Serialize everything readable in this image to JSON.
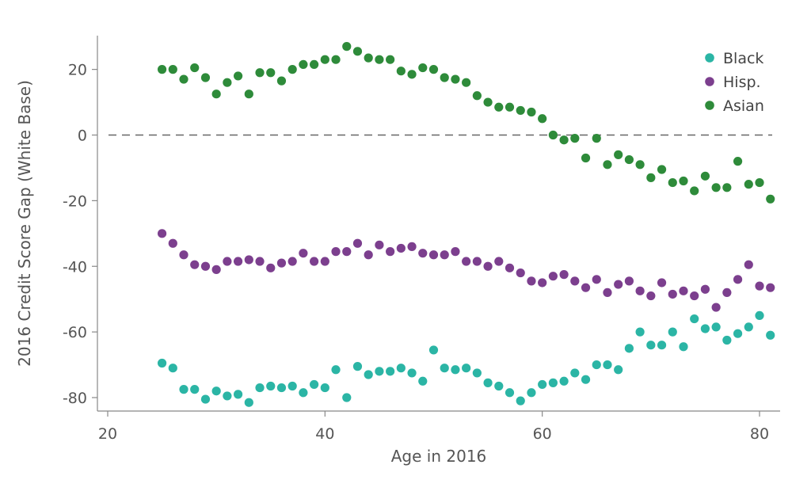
{
  "chart_data": {
    "type": "scatter",
    "xlabel": "Age in 2016",
    "ylabel": "2016 Credit Score Gap (White Base)",
    "xlim": [
      19,
      82
    ],
    "ylim": [
      -85,
      31
    ],
    "xticks": [
      20,
      40,
      60,
      80
    ],
    "yticks": [
      -80,
      -60,
      -40,
      -20,
      0,
      20
    ],
    "reference_line": {
      "y": 0,
      "style": "dashed"
    },
    "grid": false,
    "legend_position": "top-right",
    "series": [
      {
        "name": "Black",
        "color": "#2bb5a5",
        "x": [
          25,
          26,
          27,
          28,
          29,
          30,
          31,
          32,
          33,
          34,
          35,
          36,
          37,
          38,
          39,
          40,
          41,
          42,
          43,
          44,
          45,
          46,
          47,
          48,
          49,
          50,
          51,
          52,
          53,
          54,
          55,
          56,
          57,
          58,
          59,
          60,
          61,
          62,
          63,
          64,
          65,
          66,
          67,
          68,
          69,
          70,
          71,
          72,
          73,
          74,
          75,
          76,
          77,
          78,
          79,
          80,
          81
        ],
        "y": [
          -69.5,
          -71,
          -77.5,
          -77.5,
          -80.5,
          -78,
          -79.5,
          -79,
          -81.5,
          -77,
          -76.5,
          -77,
          -76.5,
          -78.5,
          -76,
          -77,
          -71.5,
          -80,
          -70.5,
          -73,
          -72,
          -72,
          -71,
          -72.5,
          -75,
          -65.5,
          -71,
          -71.5,
          -71,
          -72.5,
          -75.5,
          -76.5,
          -78.5,
          -81,
          -78.5,
          -76,
          -75.5,
          -75,
          -72.5,
          -74.5,
          -70,
          -70,
          -71.5,
          -65,
          -60,
          -64,
          -64,
          -60,
          -64.5,
          -56,
          -59,
          -58.5,
          -62.5,
          -60.5,
          -58.5,
          -55,
          -61
        ]
      },
      {
        "name": "Hisp.",
        "color": "#7c3f8e",
        "x": [
          25,
          26,
          27,
          28,
          29,
          30,
          31,
          32,
          33,
          34,
          35,
          36,
          37,
          38,
          39,
          40,
          41,
          42,
          43,
          44,
          45,
          46,
          47,
          48,
          49,
          50,
          51,
          52,
          53,
          54,
          55,
          56,
          57,
          58,
          59,
          60,
          61,
          62,
          63,
          64,
          65,
          66,
          67,
          68,
          69,
          70,
          71,
          72,
          73,
          74,
          75,
          76,
          77,
          78,
          79,
          80,
          81
        ],
        "y": [
          -30,
          -33,
          -36.5,
          -39.5,
          -40,
          -41,
          -38.5,
          -38.5,
          -38,
          -38.5,
          -40.5,
          -39,
          -38.5,
          -36,
          -38.5,
          -38.5,
          -35.5,
          -35.5,
          -33,
          -36.5,
          -33.5,
          -35.5,
          -34.5,
          -34,
          -36,
          -36.5,
          -36.5,
          -35.5,
          -38.5,
          -38.5,
          -40,
          -38.5,
          -40.5,
          -42,
          -44.5,
          -45,
          -43,
          -42.5,
          -44.5,
          -46.5,
          -44,
          -48,
          -45.5,
          -44.5,
          -47.5,
          -49,
          -45,
          -48.5,
          -47.5,
          -49,
          -47,
          -52.5,
          -48,
          -44,
          -39.5,
          -46,
          -46.5
        ]
      },
      {
        "name": "Asian",
        "color": "#2e8b3a",
        "x": [
          25,
          26,
          27,
          28,
          29,
          30,
          31,
          32,
          33,
          34,
          35,
          36,
          37,
          38,
          39,
          40,
          41,
          42,
          43,
          44,
          45,
          46,
          47,
          48,
          49,
          50,
          51,
          52,
          53,
          54,
          55,
          56,
          57,
          58,
          59,
          60,
          61,
          62,
          63,
          64,
          65,
          66,
          67,
          68,
          69,
          70,
          71,
          72,
          73,
          74,
          75,
          76,
          77,
          78,
          79,
          80,
          81
        ],
        "y": [
          20,
          20,
          17,
          20.5,
          17.5,
          12.5,
          16,
          18,
          12.5,
          19,
          19,
          16.5,
          20,
          21.5,
          21.5,
          23,
          23,
          27,
          25.5,
          23.5,
          23,
          23,
          19.5,
          18.5,
          20.5,
          20,
          17.5,
          17,
          16,
          12,
          10,
          8.5,
          8.5,
          7.5,
          7,
          5,
          0,
          -1.5,
          -1,
          -7,
          -1,
          -9,
          -6,
          -7.5,
          -9,
          -13,
          -10.5,
          -14.5,
          -14,
          -17,
          -12.5,
          -16,
          -16,
          -8,
          -15,
          -14.5,
          -19.5
        ]
      }
    ]
  }
}
